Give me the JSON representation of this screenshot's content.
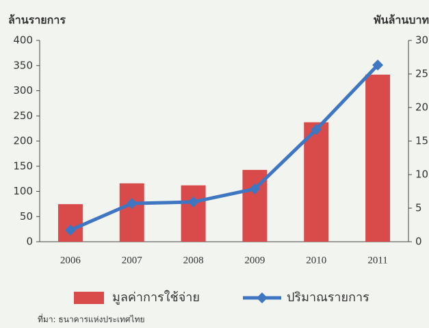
{
  "chart_data": {
    "type": "bar",
    "y_label": "ล้านรายการ",
    "y2_label": "พันล้านบาท",
    "categories": [
      "2006",
      "2007",
      "2008",
      "2009",
      "2010",
      "2011"
    ],
    "series": [
      {
        "name": "มูลค่าการใช้จ่าย",
        "type": "bar",
        "axis": "y2",
        "color": "#d94a4a",
        "values": [
          5.6,
          8.7,
          8.4,
          10.7,
          17.8,
          24.9
        ]
      },
      {
        "name": "ปริมาณรายการ",
        "type": "line",
        "axis": "y",
        "color": "#3f76c2",
        "values": [
          23,
          76,
          79,
          105,
          223,
          351
        ]
      }
    ],
    "ylim": [
      0,
      400
    ],
    "yticks": [
      0,
      50,
      100,
      150,
      200,
      250,
      300,
      350,
      400
    ],
    "y2lim": [
      0,
      30
    ],
    "y2ticks": [
      0,
      5,
      10,
      15,
      20,
      25,
      30
    ],
    "grid": false,
    "source": "ที่มา: ธนาคารแห่งประเทศไทย"
  }
}
